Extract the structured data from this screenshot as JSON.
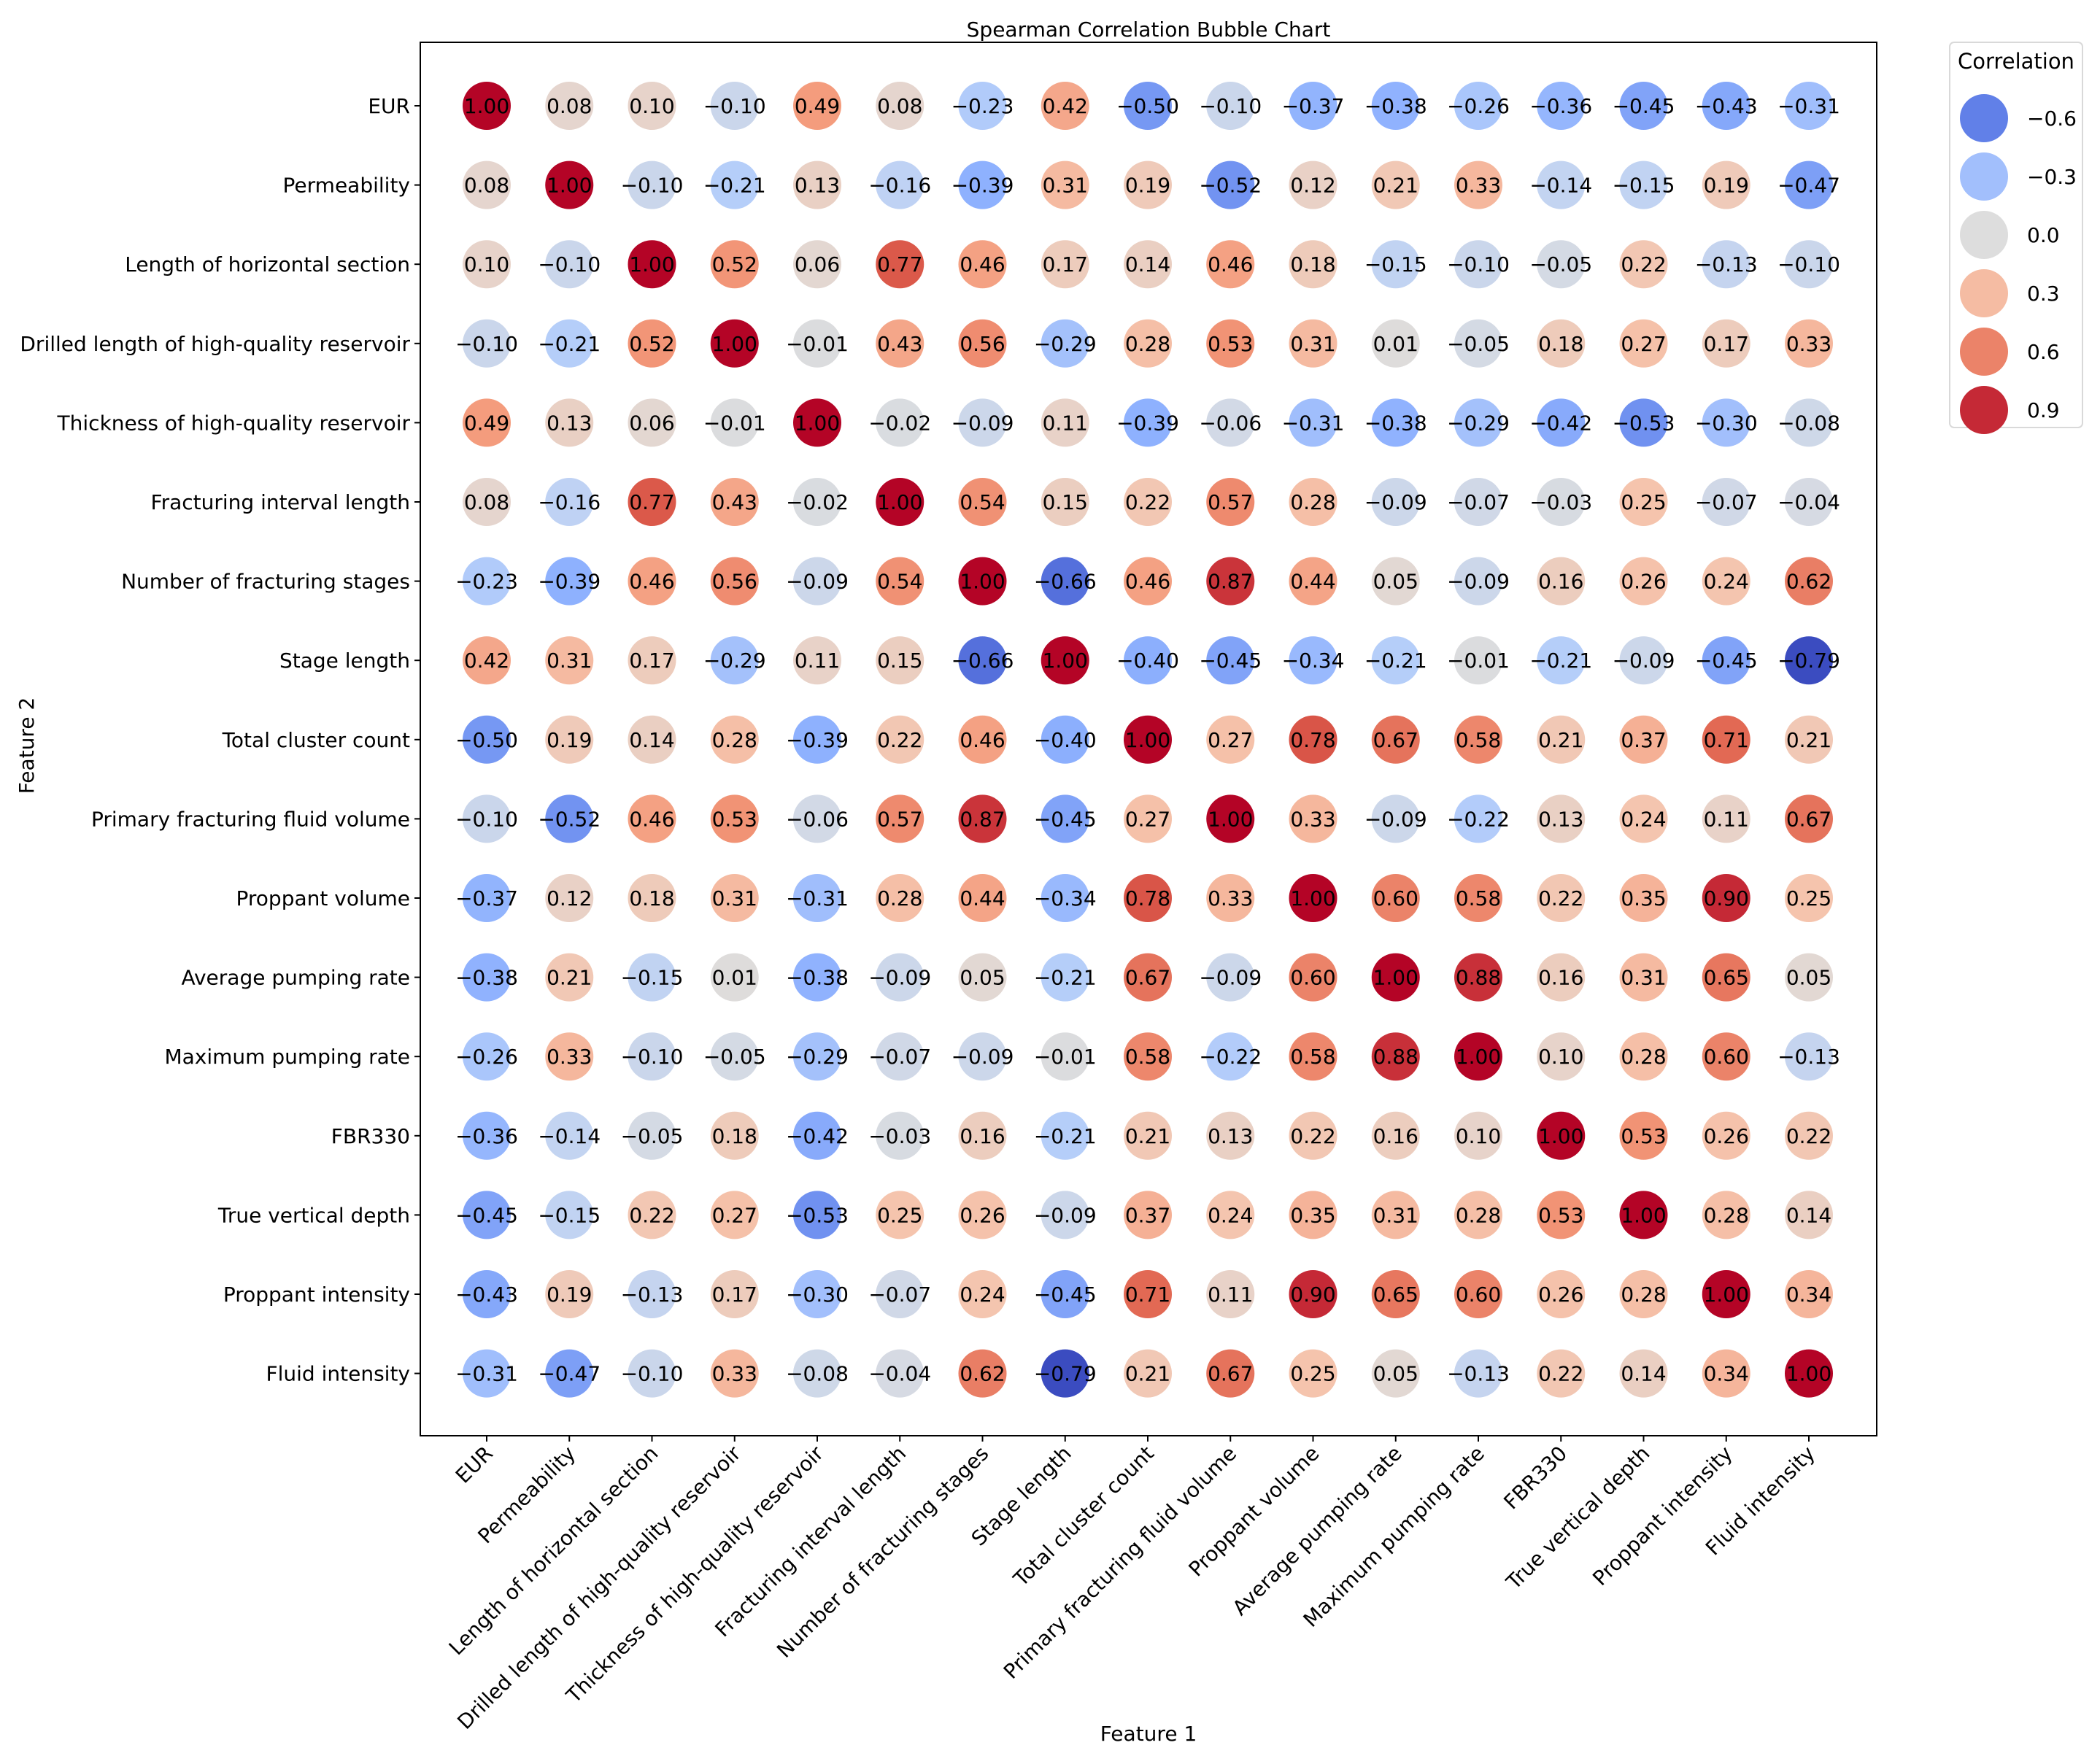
{
  "chart_data": {
    "type": "bubble-heatmap",
    "title": "Spearman Correlation Bubble Chart",
    "xlabel": "Feature 1",
    "ylabel": "Feature 2",
    "features": [
      "EUR",
      "Permeability",
      "Length of horizontal section",
      "Drilled length of high-quality reservoir",
      "Thickness of high-quality reservoir",
      "Fracturing interval length",
      "Number of fracturing stages",
      "Stage length",
      "Total cluster count",
      "Primary fracturing fluid volume",
      "Proppant volume",
      "Average pumping rate",
      "Maximum pumping rate",
      "FBR330",
      "True vertical depth",
      "Proppant intensity",
      "Fluid intensity"
    ],
    "matrix": [
      [
        1.0,
        0.08,
        0.1,
        -0.1,
        0.49,
        0.08,
        -0.23,
        0.42,
        -0.5,
        -0.1,
        -0.37,
        -0.38,
        -0.26,
        -0.36,
        -0.45,
        -0.43,
        -0.31
      ],
      [
        0.08,
        1.0,
        -0.1,
        -0.21,
        0.13,
        -0.16,
        -0.39,
        0.31,
        0.19,
        -0.52,
        0.12,
        0.21,
        0.33,
        -0.14,
        -0.15,
        0.19,
        -0.47
      ],
      [
        0.1,
        -0.1,
        1.0,
        0.52,
        0.06,
        0.77,
        0.46,
        0.17,
        0.14,
        0.46,
        0.18,
        -0.15,
        -0.1,
        -0.05,
        0.22,
        -0.13,
        -0.1
      ],
      [
        -0.1,
        -0.21,
        0.52,
        1.0,
        -0.01,
        0.43,
        0.56,
        -0.29,
        0.28,
        0.53,
        0.31,
        0.01,
        -0.05,
        0.18,
        0.27,
        0.17,
        0.33
      ],
      [
        0.49,
        0.13,
        0.06,
        -0.01,
        1.0,
        -0.02,
        -0.09,
        0.11,
        -0.39,
        -0.06,
        -0.31,
        -0.38,
        -0.29,
        -0.42,
        -0.53,
        -0.3,
        -0.08
      ],
      [
        0.08,
        -0.16,
        0.77,
        0.43,
        -0.02,
        1.0,
        0.54,
        0.15,
        0.22,
        0.57,
        0.28,
        -0.09,
        -0.07,
        -0.03,
        0.25,
        -0.07,
        -0.04
      ],
      [
        -0.23,
        -0.39,
        0.46,
        0.56,
        -0.09,
        0.54,
        1.0,
        -0.66,
        0.46,
        0.87,
        0.44,
        0.05,
        -0.09,
        0.16,
        0.26,
        0.24,
        0.62
      ],
      [
        0.42,
        0.31,
        0.17,
        -0.29,
        0.11,
        0.15,
        -0.66,
        1.0,
        -0.4,
        -0.45,
        -0.34,
        -0.21,
        -0.01,
        -0.21,
        -0.09,
        -0.45,
        -0.79
      ],
      [
        -0.5,
        0.19,
        0.14,
        0.28,
        -0.39,
        0.22,
        0.46,
        -0.4,
        1.0,
        0.27,
        0.78,
        0.67,
        0.58,
        0.21,
        0.37,
        0.71,
        0.21
      ],
      [
        -0.1,
        -0.52,
        0.46,
        0.53,
        -0.06,
        0.57,
        0.87,
        -0.45,
        0.27,
        1.0,
        0.33,
        -0.09,
        -0.22,
        0.13,
        0.24,
        0.11,
        0.67
      ],
      [
        -0.37,
        0.12,
        0.18,
        0.31,
        -0.31,
        0.28,
        0.44,
        -0.34,
        0.78,
        0.33,
        1.0,
        0.6,
        0.58,
        0.22,
        0.35,
        0.9,
        0.25
      ],
      [
        -0.38,
        0.21,
        -0.15,
        0.01,
        -0.38,
        -0.09,
        0.05,
        -0.21,
        0.67,
        -0.09,
        0.6,
        1.0,
        0.88,
        0.16,
        0.31,
        0.65,
        0.05
      ],
      [
        -0.26,
        0.33,
        -0.1,
        -0.05,
        -0.29,
        -0.07,
        -0.09,
        -0.01,
        0.58,
        -0.22,
        0.58,
        0.88,
        1.0,
        0.1,
        0.28,
        0.6,
        -0.13
      ],
      [
        -0.36,
        -0.14,
        -0.05,
        0.18,
        -0.42,
        -0.03,
        0.16,
        -0.21,
        0.21,
        0.13,
        0.22,
        0.16,
        0.1,
        1.0,
        0.53,
        0.26,
        0.22
      ],
      [
        -0.45,
        -0.15,
        0.22,
        0.27,
        -0.53,
        0.25,
        0.26,
        -0.09,
        0.37,
        0.24,
        0.35,
        0.31,
        0.28,
        0.53,
        1.0,
        0.28,
        0.14
      ],
      [
        -0.43,
        0.19,
        -0.13,
        0.17,
        -0.3,
        -0.07,
        0.24,
        -0.45,
        0.71,
        0.11,
        0.9,
        0.65,
        0.6,
        0.26,
        0.28,
        1.0,
        0.34
      ],
      [
        -0.31,
        -0.47,
        -0.1,
        0.33,
        -0.08,
        -0.04,
        0.62,
        -0.79,
        0.21,
        0.67,
        0.25,
        0.05,
        -0.13,
        0.22,
        0.14,
        0.34,
        1.0
      ]
    ],
    "legend": {
      "title": "Correlation",
      "entries": [
        -0.6,
        -0.3,
        0.0,
        0.3,
        0.6,
        0.9
      ],
      "entry_labels": [
        "−0.6",
        "−0.3",
        "0.0",
        "0.3",
        "0.6",
        "0.9"
      ],
      "placement": "outside-right-top"
    },
    "colormap": "coolwarm",
    "value_range": [
      -0.79,
      1.0
    ],
    "value_format": "2 decimals, unicode minus"
  }
}
